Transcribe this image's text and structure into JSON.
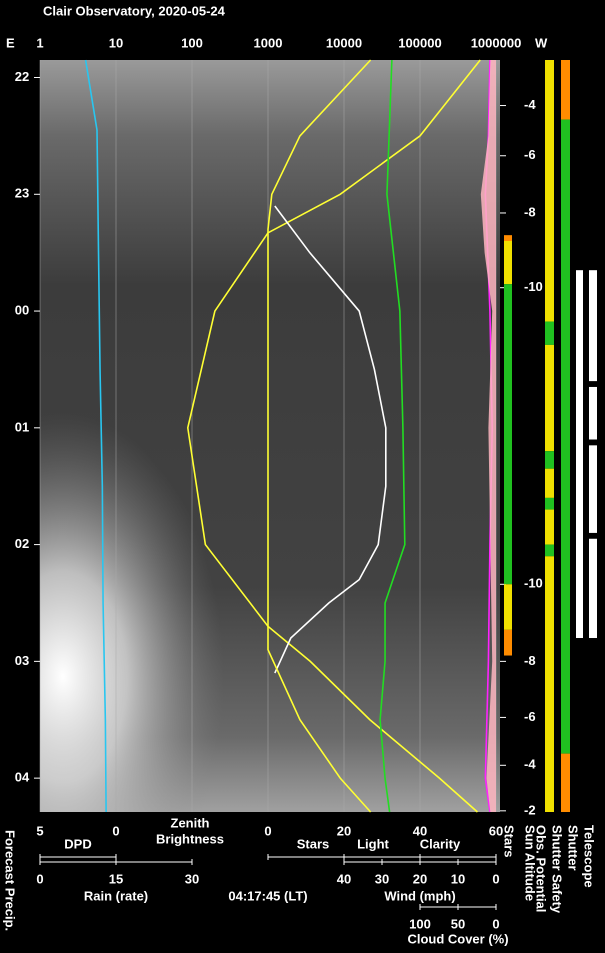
{
  "chart_data": {
    "type": "line",
    "title": "Clair Observatory, 2020-05-24",
    "timestamp": "04:17:45 (LT)",
    "east_label": "E",
    "west_label": "W",
    "ylim": [
      21.85,
      28.29
    ],
    "yticks": [
      22,
      23,
      {
        "value": 24,
        "label": "00"
      },
      {
        "value": 25,
        "label": "01"
      },
      {
        "value": 26,
        "label": "02"
      },
      {
        "value": 27,
        "label": "03"
      },
      {
        "value": 28,
        "label": "04"
      }
    ],
    "xlim": [
      1,
      1000000
    ],
    "xticks": [
      1,
      10,
      100,
      1000,
      10000,
      100000,
      1000000
    ],
    "log_x": true,
    "grid": true,
    "axes": {
      "dpd": {
        "lim": [
          5,
          0
        ],
        "ticks": [
          5,
          0
        ]
      },
      "stars": {
        "lim": [
          0,
          60
        ],
        "ticks": [
          0,
          20,
          40,
          60
        ]
      },
      "rain": {
        "lim": [
          0,
          30
        ],
        "ticks": [
          0,
          15,
          30
        ],
        "label": "Rain (rate)",
        "color": "#29c6f0"
      },
      "wind": {
        "lim": [
          40,
          0
        ],
        "ticks": [
          40,
          30,
          20,
          10,
          0
        ]
      },
      "cloud": {
        "lim": [
          100,
          0
        ],
        "ticks": [
          100,
          50,
          0
        ]
      }
    },
    "series": [
      {
        "name": "DPD",
        "color": "#29c6f0",
        "axis": "dpd",
        "x": [
          21.85,
          22.45,
          23.5,
          24.5,
          25.5,
          26.5,
          27.5,
          28.29
        ],
        "values": [
          2.0,
          1.25,
          1.15,
          1.05,
          0.9,
          0.85,
          0.7,
          0.65
        ]
      },
      {
        "name": [
          "Zenith",
          "Brightness"
        ],
        "color": "#ffff33",
        "axis": "zenith",
        "x": [
          21.85,
          22.5,
          23,
          23.33,
          24,
          25,
          26,
          26.7,
          27,
          27.5,
          28,
          28.29
        ],
        "values": [
          620000,
          100000,
          8900,
          1000,
          200,
          88,
          150,
          1000,
          3600,
          21900,
          180000,
          570000
        ]
      },
      {
        "name": "Stars",
        "color": "#ffffff",
        "axis": "stars",
        "x": [
          23.1,
          23.5,
          24,
          24.5,
          25,
          25.5,
          26,
          26.3,
          26.5,
          26.8,
          27.1
        ],
        "values": [
          1.8,
          11,
          24,
          28,
          31,
          31,
          29,
          24,
          16,
          6,
          1.8
        ]
      },
      {
        "name": "Light",
        "color": "#ffff33",
        "axis": "stars",
        "x": [
          21.85,
          22.5,
          23,
          23.3,
          26.9,
          27.5,
          28,
          28.29
        ],
        "values": [
          27,
          8.4,
          1,
          0,
          0,
          8.4,
          19,
          27
        ]
      },
      {
        "name": "Clarity",
        "color": "#22dd22",
        "axis": "stars",
        "x": [
          21.85,
          23,
          24,
          25,
          26,
          26.5,
          27,
          27.5,
          28,
          28.29
        ],
        "values": [
          32.6,
          31.3,
          34.7,
          35.5,
          36,
          30.8,
          30.8,
          29.5,
          30.8,
          32
        ]
      },
      {
        "name": "Cloud Cover (%)",
        "color": "#ff22ff",
        "axis": "cloud",
        "x": [
          21.85,
          22.5,
          23,
          24,
          25,
          26,
          27,
          28,
          28.29
        ],
        "values": [
          8,
          10,
          14,
          8,
          5,
          8,
          10,
          14,
          8
        ]
      },
      {
        "name": "Wind (mph)",
        "color": "#ffb6c1",
        "axis": "wind",
        "area": true,
        "x": [
          21.85,
          22.5,
          23,
          23.5,
          24,
          25,
          26,
          27,
          28,
          28.29
        ],
        "values": [
          1.5,
          2,
          4,
          3,
          1,
          2,
          1.5,
          1,
          2.5,
          1.5
        ]
      }
    ],
    "sun_altitude": {
      "name": "Sun Altitude",
      "x": [
        22.24,
        22.67,
        23.16,
        23.8,
        26.34,
        27.0,
        27.48,
        27.89,
        28.28
      ],
      "values": [
        -4,
        -6,
        -8,
        -10,
        -10,
        -8,
        -6,
        -4,
        -2
      ]
    },
    "forecast_label": "Forecast Precip.",
    "status_bars": [
      {
        "name": "Stars",
        "segments": [
          {
            "from": 23.35,
            "to": 23.4,
            "color": "#ff8c00"
          },
          {
            "from": 23.4,
            "to": 23.77,
            "color": "#f0e000"
          },
          {
            "from": 23.77,
            "to": 26.34,
            "color": "#20c020"
          },
          {
            "from": 26.34,
            "to": 26.73,
            "color": "#f0e000"
          },
          {
            "from": 26.73,
            "to": 26.95,
            "color": "#ff8c00"
          }
        ]
      },
      {
        "name": "Obs. Potential",
        "segments": [
          {
            "from": 21.85,
            "to": 24.09,
            "color": "#f0e000"
          },
          {
            "from": 24.09,
            "to": 24.29,
            "color": "#20c020"
          },
          {
            "from": 24.29,
            "to": 25.2,
            "color": "#f0e000"
          },
          {
            "from": 25.2,
            "to": 25.35,
            "color": "#20c020"
          },
          {
            "from": 25.35,
            "to": 25.6,
            "color": "#f0e000"
          },
          {
            "from": 25.6,
            "to": 25.7,
            "color": "#20c020"
          },
          {
            "from": 25.7,
            "to": 26.0,
            "color": "#f0e000"
          },
          {
            "from": 26.0,
            "to": 26.1,
            "color": "#20c020"
          },
          {
            "from": 26.1,
            "to": 28.29,
            "color": "#f0e000"
          }
        ]
      },
      {
        "name": "Shutter Safety",
        "segments": [
          {
            "from": 21.85,
            "to": 22.36,
            "color": "#ff8c00"
          },
          {
            "from": 22.36,
            "to": 27.79,
            "color": "#20c020"
          },
          {
            "from": 27.79,
            "to": 28.29,
            "color": "#ff8c00"
          }
        ]
      },
      {
        "name": "Shutter",
        "segments": [
          {
            "from": 23.65,
            "to": 26.8,
            "color": "#ffffff"
          }
        ]
      },
      {
        "name": "Telescope",
        "segments": [
          {
            "from": 23.65,
            "to": 24.6,
            "color": "#ffffff"
          },
          {
            "from": 24.65,
            "to": 25.1,
            "color": "#ffffff"
          },
          {
            "from": 25.15,
            "to": 25.9,
            "color": "#ffffff"
          },
          {
            "from": 25.95,
            "to": 26.8,
            "color": "#ffffff"
          }
        ]
      }
    ]
  }
}
